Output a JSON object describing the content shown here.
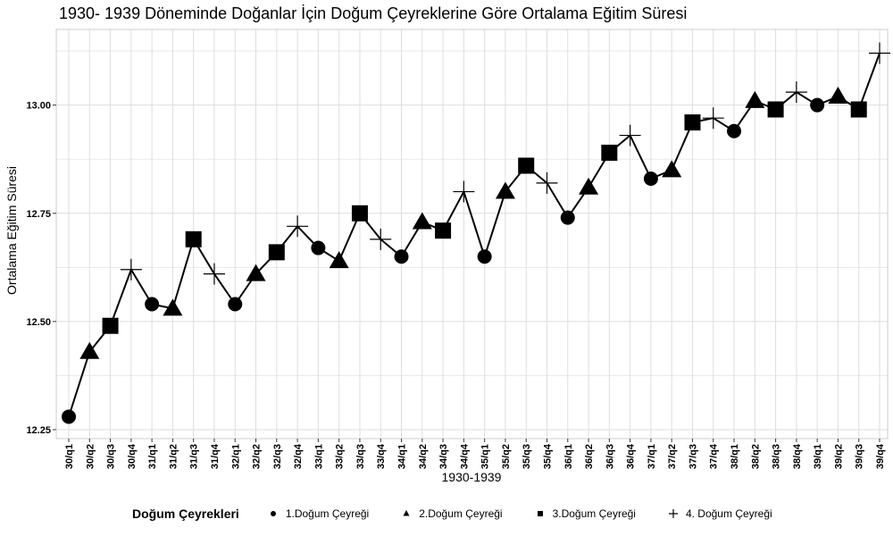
{
  "chart_data": {
    "type": "line",
    "title": "1930- 1939 Döneminde Doğanlar İçin Doğum Çeyreklerine Göre Ortalama Eğitim Süresi",
    "xlabel": "1930-1939",
    "ylabel": "Ortalama Eğitim Süresi",
    "ylim": [
      12.25,
      13.15
    ],
    "yticks": [
      "12.25",
      "12.50",
      "12.75",
      "13.00"
    ],
    "grid": true,
    "legend_position": "bottom",
    "legend_title": "Doğum Çeyrekleri",
    "legend": [
      {
        "label": "1.Doğum Çeyreği",
        "shape": "circle"
      },
      {
        "label": "2.Doğum Çeyreği",
        "shape": "triangle"
      },
      {
        "label": "3.Doğum Çeyreği",
        "shape": "square"
      },
      {
        "label": "4. Doğum Çeyreği",
        "shape": "plus"
      }
    ],
    "categories": [
      "30/q1",
      "30/q2",
      "30/q3",
      "30/q4",
      "31/q1",
      "31/q2",
      "31/q3",
      "31/q4",
      "32/q1",
      "32/q2",
      "32/q3",
      "32/q4",
      "33/q1",
      "33/q2",
      "33/q3",
      "33/q4",
      "34/q1",
      "34/q2",
      "34/q3",
      "34/q4",
      "35/q1",
      "35/q2",
      "35/q3",
      "35/q4",
      "36/q1",
      "36/q2",
      "36/q3",
      "36/q4",
      "37/q1",
      "37/q2",
      "37/q3",
      "37/q4",
      "38/q1",
      "38/q2",
      "38/q3",
      "38/q4",
      "39/q1",
      "39/q2",
      "39/q3",
      "39/q4"
    ],
    "values": [
      12.28,
      12.43,
      12.49,
      12.62,
      12.54,
      12.53,
      12.69,
      12.61,
      12.54,
      12.61,
      12.66,
      12.72,
      12.67,
      12.64,
      12.75,
      12.69,
      12.65,
      12.73,
      12.71,
      12.8,
      12.65,
      12.8,
      12.86,
      12.82,
      12.74,
      12.81,
      12.89,
      12.93,
      12.83,
      12.85,
      12.96,
      12.97,
      12.94,
      13.01,
      12.99,
      13.03,
      13.0,
      13.02,
      12.99,
      13.12
    ],
    "quarters": [
      1,
      2,
      3,
      4,
      1,
      2,
      3,
      4,
      1,
      2,
      3,
      4,
      1,
      2,
      3,
      4,
      1,
      2,
      3,
      4,
      1,
      2,
      3,
      4,
      1,
      2,
      3,
      4,
      1,
      2,
      3,
      4,
      1,
      2,
      3,
      4,
      1,
      2,
      3,
      4
    ]
  },
  "colors": {
    "marker": "#000000",
    "line": "#000000",
    "grid": "#dedede",
    "panel_border": "#cccccc"
  }
}
